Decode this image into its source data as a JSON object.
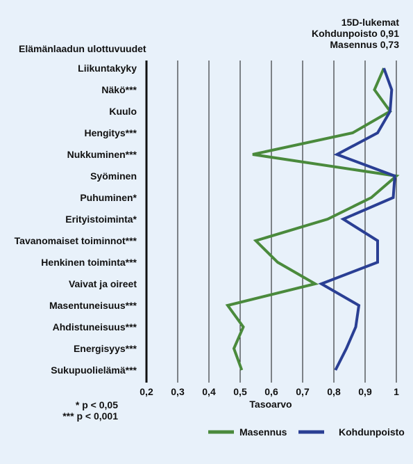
{
  "chart_data": {
    "type": "line",
    "title_lines": [
      "15D-lukemat",
      "Kohdunpoisto 0,91",
      "Masennus 0,73"
    ],
    "category_title": "Elämänlaadun ulottuvuudet",
    "categories": [
      "Liikuntakyky",
      "Näkö***",
      "Kuulo",
      "Hengitys***",
      "Nukkuminen***",
      "Syöminen",
      "Puhuminen*",
      "Erityistoiminta*",
      "Tavanomaiset toiminnot***",
      "Henkinen toiminta***",
      "Vaivat ja oireet",
      "Masentuneisuus***",
      "Ahdistuneisuus***",
      "Energisyys***",
      "Sukupuolielämä***"
    ],
    "xlabel": "Tasoarvo",
    "xlim": [
      0.2,
      1.0
    ],
    "ticks": [
      "0,2",
      "0,3",
      "0,4",
      "0,5",
      "0,6",
      "0,7",
      "0,8",
      "0,9",
      "1"
    ],
    "grid": true,
    "legend_position": "bottom-right",
    "footnotes": [
      "* p < 0,05",
      "*** p < 0,001"
    ],
    "series": [
      {
        "name": "Masennus",
        "color": "#4a8a3c",
        "values": [
          0.96,
          0.93,
          0.98,
          0.86,
          0.54,
          1.0,
          0.92,
          0.78,
          0.55,
          0.62,
          0.74,
          0.46,
          0.51,
          0.48,
          0.505
        ]
      },
      {
        "name": "Kohdunpoisto",
        "color": "#2a3f94",
        "values": [
          0.96,
          0.985,
          0.98,
          0.94,
          0.81,
          0.995,
          0.99,
          0.83,
          0.94,
          0.94,
          0.76,
          0.88,
          0.87,
          0.84,
          0.805
        ]
      }
    ]
  }
}
